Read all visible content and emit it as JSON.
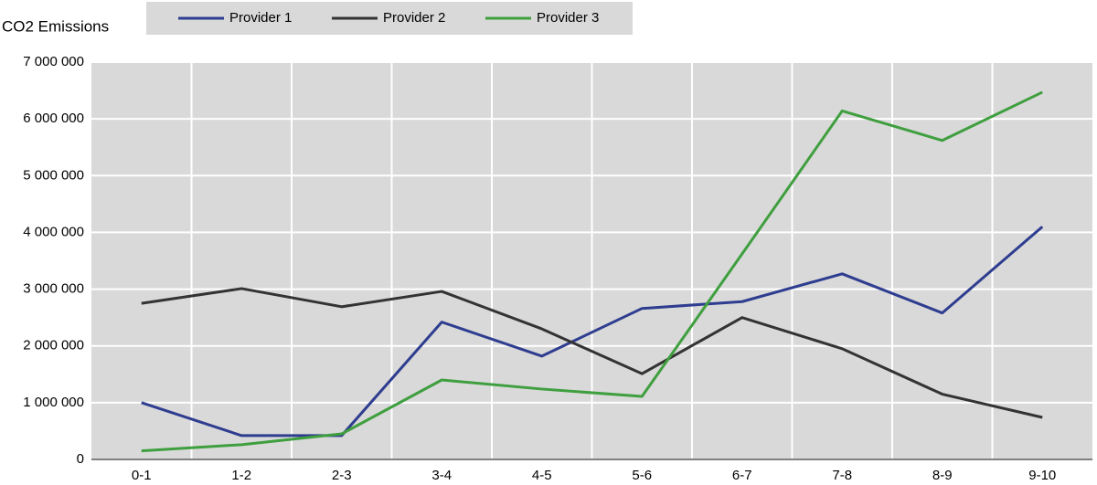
{
  "chart_data": {
    "type": "line",
    "y_label": "CO2 Emissions",
    "categories": [
      "0-1",
      "1-2",
      "2-3",
      "3-4",
      "4-5",
      "5-6",
      "6-7",
      "7-8",
      "8-9",
      "9-10"
    ],
    "series": [
      {
        "name": "Provider 1",
        "color": "#2e3d8f",
        "values": [
          1000000,
          420000,
          420000,
          2420000,
          1820000,
          2660000,
          2780000,
          3270000,
          2580000,
          4100000
        ]
      },
      {
        "name": "Provider 2",
        "color": "#333333",
        "values": [
          2750000,
          3010000,
          2690000,
          2960000,
          2300000,
          1510000,
          2500000,
          1950000,
          1150000,
          740000
        ]
      },
      {
        "name": "Provider 3",
        "color": "#3f9f3f",
        "values": [
          150000,
          260000,
          450000,
          1400000,
          1240000,
          1110000,
          3620000,
          6140000,
          5620000,
          6470000
        ]
      }
    ],
    "ylim": [
      0,
      7000000
    ],
    "yticks": [
      0,
      {
        "value": 1000000,
        "label": "1 000 000"
      },
      {
        "value": 2000000,
        "label": "2 000 000"
      },
      {
        "value": 3000000,
        "label": "3 000 000"
      },
      {
        "value": 4000000,
        "label": "4 000 000"
      },
      {
        "value": 5000000,
        "label": "5 000 000"
      },
      {
        "value": 6000000,
        "label": "6 000 000"
      },
      {
        "value": 7000000,
        "label": "7 000 000"
      }
    ],
    "grid": true
  }
}
